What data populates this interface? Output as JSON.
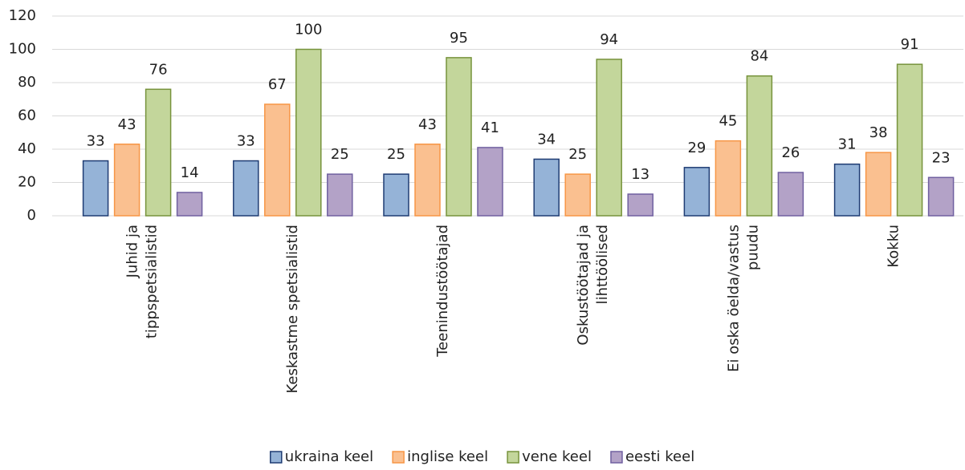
{
  "chart_data": {
    "type": "bar",
    "categories": [
      "Juhid ja\ntippspetsialistid",
      "Keskastme spetsialistid",
      "Teenindustöötajad",
      "Oskustöötajad ja\nlihttöölised",
      "Ei oska öelda/vastus\npuudu",
      "Kokku"
    ],
    "series": [
      {
        "name": "ukraina keel",
        "color": "#95b3d7",
        "stroke": "#1f3c73",
        "values": [
          33,
          33,
          25,
          34,
          29,
          31
        ]
      },
      {
        "name": "inglise keel",
        "color": "#fac090",
        "stroke": "#f79646",
        "values": [
          43,
          67,
          43,
          25,
          45,
          38
        ]
      },
      {
        "name": "vene keel",
        "color": "#c3d69b",
        "stroke": "#77933c",
        "values": [
          76,
          100,
          95,
          94,
          84,
          91
        ]
      },
      {
        "name": "eesti keel",
        "color": "#b3a2c7",
        "stroke": "#7060a0",
        "values": [
          14,
          25,
          41,
          13,
          26,
          23
        ]
      }
    ],
    "ylim": [
      0,
      120
    ],
    "yticks": [
      0,
      20,
      40,
      60,
      80,
      100,
      120
    ],
    "grid": true,
    "legend": "bottom"
  }
}
